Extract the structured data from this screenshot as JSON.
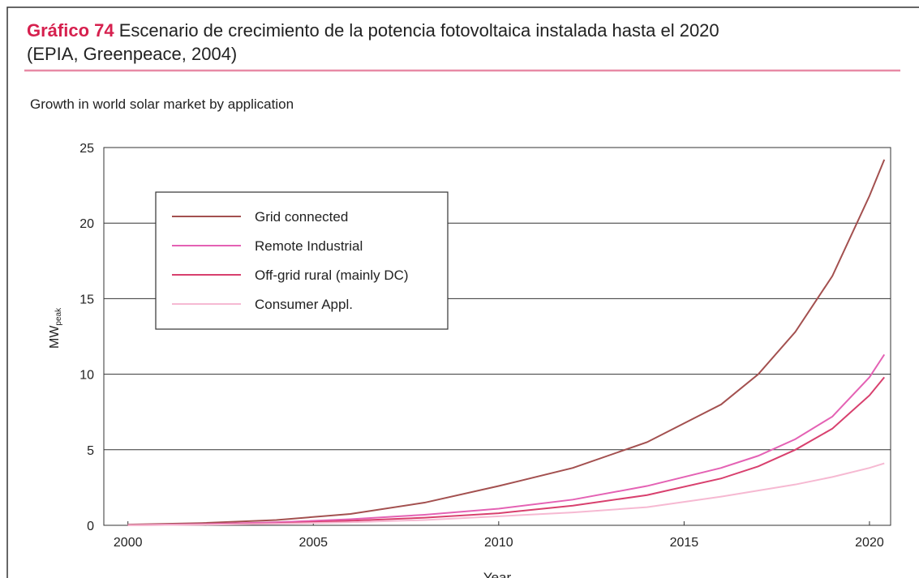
{
  "chart_data": {
    "type": "line",
    "title_label": "Gráfico 74",
    "title": "Escenario de crecimiento de la potencia fotovoltaica instalada hasta el 2020",
    "title_line2": "(EPIA, Greenpeace, 2004)",
    "subtitle": "Growth in world solar market by application",
    "x_label": "Year",
    "y_label": {
      "main": "MW",
      "sub": "peak"
    },
    "x": [
      2000,
      2002,
      2004,
      2006,
      2008,
      2010,
      2012,
      2014,
      2016,
      2017,
      2018,
      2019,
      2020,
      2020.4
    ],
    "series": [
      {
        "name": "Grid connected",
        "color": "#a3504f",
        "values": [
          0.05,
          0.15,
          0.35,
          0.75,
          1.5,
          2.6,
          3.8,
          5.5,
          8.0,
          10.0,
          12.8,
          16.5,
          21.8,
          24.2
        ]
      },
      {
        "name": "Remote Industrial",
        "color": "#e462b4",
        "values": [
          0.02,
          0.08,
          0.2,
          0.4,
          0.7,
          1.1,
          1.7,
          2.6,
          3.8,
          4.6,
          5.7,
          7.2,
          9.8,
          11.3
        ]
      },
      {
        "name": "Off-grid rural (mainly DC)",
        "color": "#d8406e",
        "values": [
          0.01,
          0.05,
          0.12,
          0.3,
          0.5,
          0.8,
          1.3,
          2.0,
          3.1,
          3.9,
          5.0,
          6.4,
          8.6,
          9.8
        ]
      },
      {
        "name": "Consumer Appl.",
        "color": "#f6b9d2",
        "values": [
          0.01,
          0.04,
          0.1,
          0.2,
          0.35,
          0.6,
          0.85,
          1.2,
          1.9,
          2.3,
          2.7,
          3.2,
          3.8,
          4.1
        ]
      }
    ],
    "xlim": [
      1999.35,
      2020.57
    ],
    "xticks": [
      2000,
      2005,
      2010,
      2015,
      2020
    ],
    "ylim": [
      0,
      25
    ],
    "yticks": [
      0,
      5,
      10,
      15,
      20,
      25
    ],
    "grid": true,
    "legend": "upper left"
  }
}
